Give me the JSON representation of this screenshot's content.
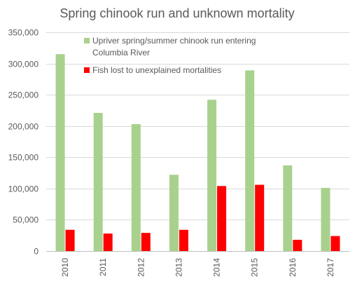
{
  "chart_data": {
    "type": "bar",
    "title": "Spring chinook run and unknown mortality",
    "categories": [
      "2010",
      "2011",
      "2012",
      "2013",
      "2014",
      "2015",
      "2016",
      "2017"
    ],
    "series": [
      {
        "name": "Upriver spring/summer chinook run entering Columbia River",
        "name_lines": [
          "Upriver spring/summer chinook run entering",
          "Columbia River"
        ],
        "color": "#a9d18e",
        "values": [
          315000,
          221000,
          203000,
          122000,
          242000,
          289000,
          137000,
          101000
        ]
      },
      {
        "name": "Fish lost to unexplained mortalities",
        "name_lines": [
          "Fish lost to unexplained mortalities"
        ],
        "color": "#ff0000",
        "values": [
          34000,
          28000,
          29000,
          34000,
          104000,
          106000,
          18000,
          24000
        ]
      }
    ],
    "ylim": [
      0,
      350000
    ],
    "yticks": [
      0,
      50000,
      100000,
      150000,
      200000,
      250000,
      300000,
      350000
    ],
    "ytick_labels": [
      "0",
      "50,000",
      "100,000",
      "150,000",
      "200,000",
      "250,000",
      "300,000",
      "350,000"
    ],
    "grid": true,
    "legend_position": "top-center",
    "xlabel": "",
    "ylabel": ""
  }
}
